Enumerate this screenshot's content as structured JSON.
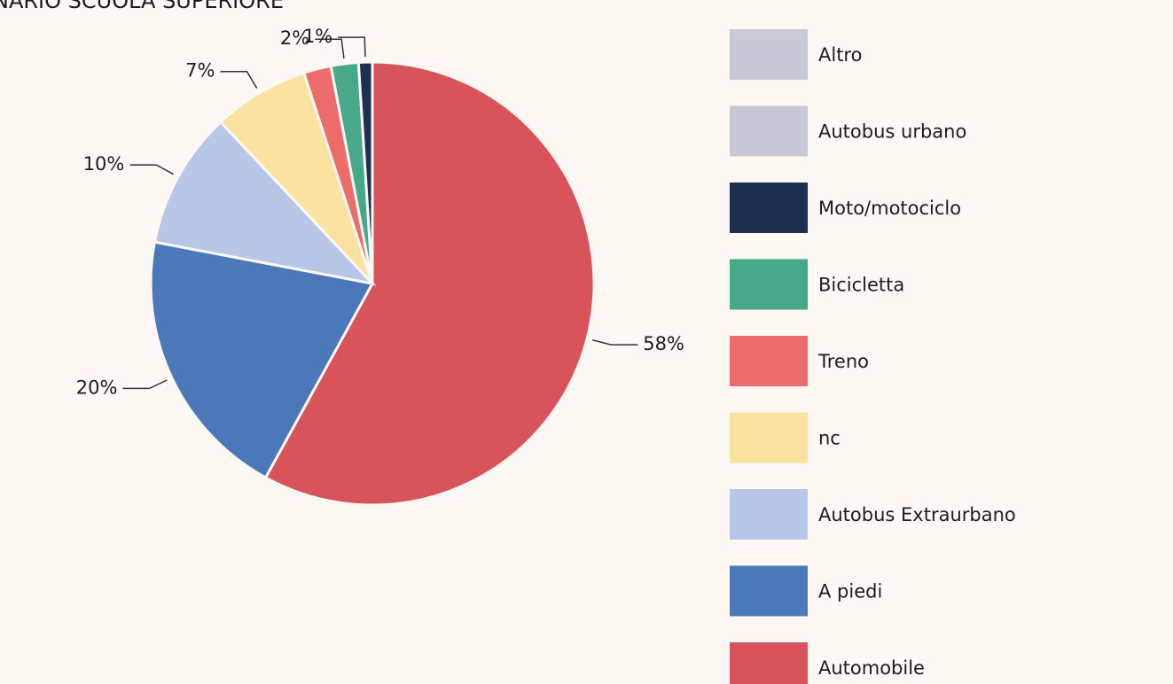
{
  "chart_data": {
    "type": "pie",
    "title": "NARIO SCUOLA SUPERIORE",
    "categories": [
      "Altro",
      "Autobus urbano",
      "Moto/motociclo",
      "Bicicletta",
      "Treno",
      "nc",
      "Autobus Extraurbano",
      "A piedi",
      "Automobile"
    ],
    "values": [
      0,
      0,
      1,
      2,
      2,
      7,
      10,
      20,
      58
    ],
    "value_labels": [
      null,
      null,
      "1%",
      "2%",
      null,
      "7%",
      "10%",
      "20%",
      "58%"
    ],
    "colors": [
      "#c9c8d6",
      "#c9c8d6",
      "#1e3050",
      "#48a98a",
      "#ec6b6b",
      "#fbe2a0",
      "#b8c6e8",
      "#4a78b9",
      "#d9545a"
    ],
    "legend": "right"
  }
}
